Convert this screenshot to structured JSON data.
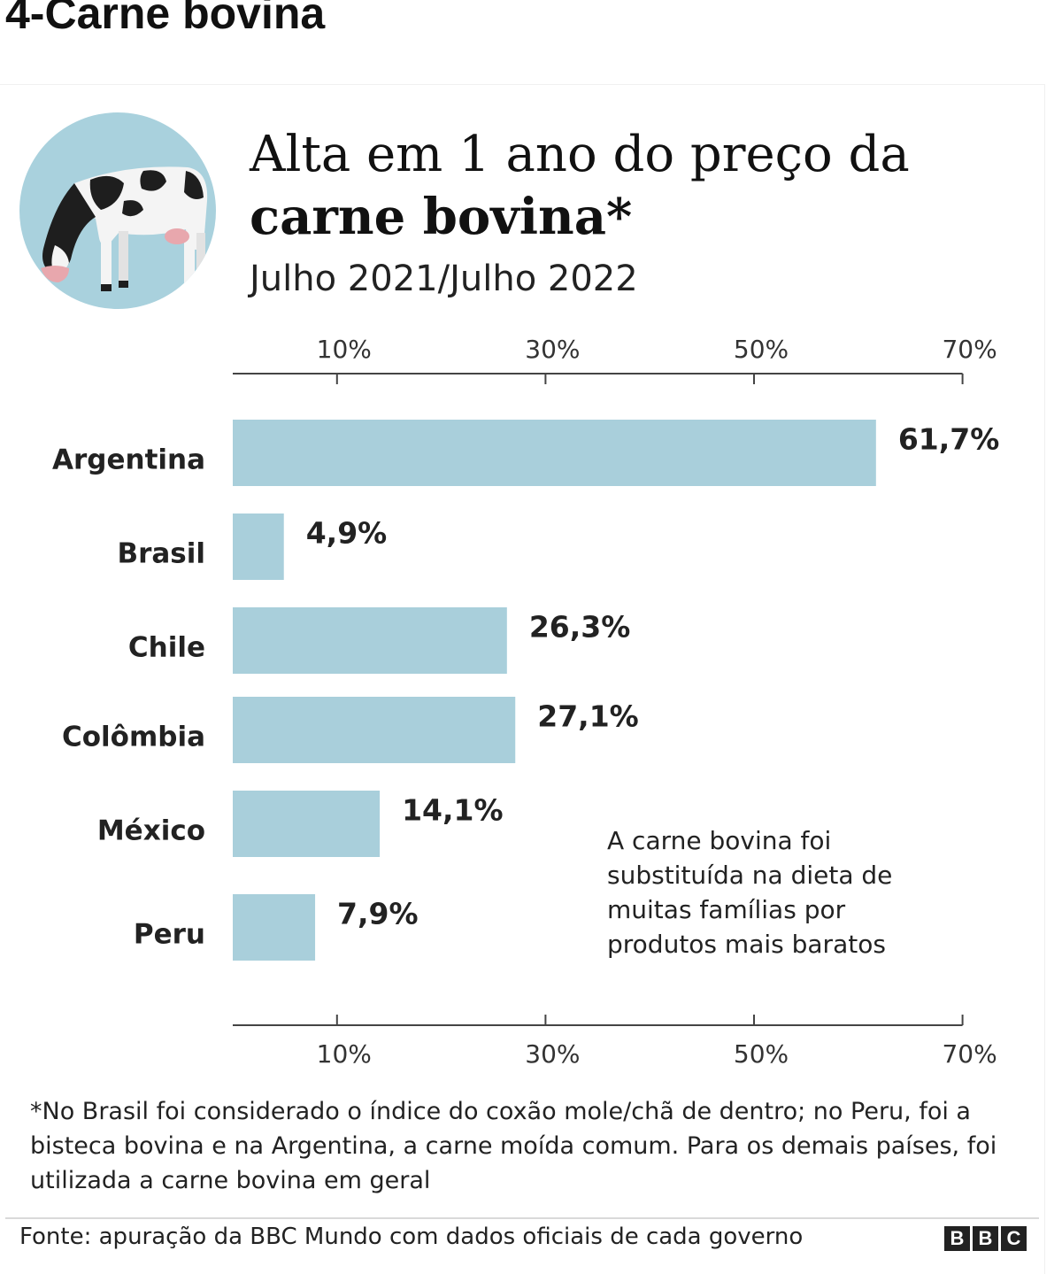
{
  "page": {
    "heading": "4-Carne bovina"
  },
  "header": {
    "title_line1": "Alta em 1 ano do preço da",
    "title_line2": "carne bovina*",
    "subtitle": "Julho 2021/Julho 2022",
    "icon": "cow-icon"
  },
  "chart_data": {
    "type": "bar",
    "orientation": "horizontal",
    "categories": [
      "Argentina",
      "Brasil",
      "Chile",
      "Colômbia",
      "México",
      "Peru"
    ],
    "values": [
      61.7,
      4.9,
      26.3,
      27.1,
      14.1,
      7.9
    ],
    "value_labels": [
      "61,7%",
      "4,9%",
      "26,3%",
      "27,1%",
      "14,1%",
      "7,9%"
    ],
    "xlim": [
      0,
      70
    ],
    "ticks": [
      10,
      30,
      50,
      70
    ],
    "tick_labels": [
      "10%",
      "30%",
      "50%",
      "70%"
    ],
    "axis_positions": [
      "top",
      "bottom"
    ],
    "bar_color": "#a9cfdb",
    "grid": false
  },
  "annotation": "A carne bovina foi substituída na dieta de muitas famílias por produtos mais baratos",
  "footnote": "*No Brasil foi considerado o índice do coxão mole/chã de dentro; no Peru, foi a bisteca bovina e na Argentina, a carne moída comum. Para os demais países, foi utilizada a carne bovina em geral",
  "footer": {
    "source": "Fonte: apuração da BBC Mundo com dados oficiais de cada governo",
    "logo_letters": [
      "B",
      "B",
      "C"
    ]
  }
}
